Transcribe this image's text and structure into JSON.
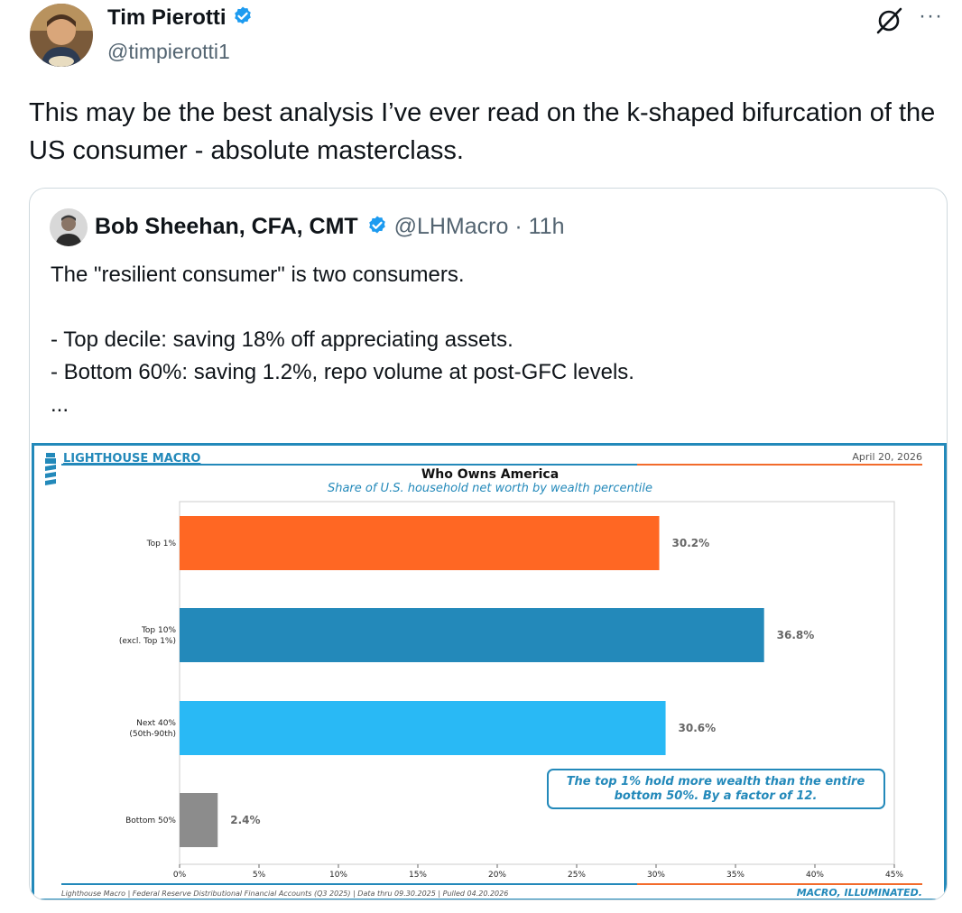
{
  "tweet": {
    "author_name": "Tim Pierotti",
    "author_handle": "@timpierotti1",
    "text": "This may be the best analysis I’ve ever read on the k-shaped bifurcation of the US consumer - absolute masterclass.",
    "more_label": "···",
    "icons": [
      "verified-badge-icon",
      "grok-icon",
      "more-icon"
    ]
  },
  "quote": {
    "author_name": "Bob Sheehan, CFA, CMT",
    "author_handle": "@LHMacro",
    "time": "· 11h",
    "lines": [
      "The \"resilient consumer\" is two consumers.",
      "",
      "- Top decile: saving 18% off appreciating assets.",
      "- Bottom 60%: saving 1.2%, repo volume at post-GFC levels.",
      "..."
    ]
  },
  "chart_card": {
    "brand": "LIGHTHOUSE MACRO",
    "date": "April 20, 2026",
    "footer_source": "Lighthouse Macro | Federal Reserve Distributional Financial Accounts (Q3 2025) | Data thru 09.30.2025 | Pulled 04.20.2026",
    "footer_tagline": "MACRO, ILLUMINATED.",
    "accent_blue": "#2389ba",
    "accent_orange": "#f26b2b"
  },
  "chart_data": {
    "type": "bar",
    "orientation": "horizontal",
    "title": "Who Owns America",
    "subtitle": "Share of U.S. household net worth by wealth percentile",
    "categories": [
      [
        "Top 1%"
      ],
      [
        "Top 10%",
        "(excl. Top 1%)"
      ],
      [
        "Next 40%",
        "(50th-90th)"
      ],
      [
        "Bottom 50%"
      ]
    ],
    "values": [
      30.2,
      36.8,
      30.6,
      2.4
    ],
    "value_labels": [
      "30.2%",
      "36.8%",
      "30.6%",
      "2.4%"
    ],
    "colors": [
      "#ff6723",
      "#2389ba",
      "#29b9f5",
      "#8c8c8c"
    ],
    "xlim": [
      0,
      45
    ],
    "xticks": [
      "0%",
      "5%",
      "10%",
      "15%",
      "20%",
      "25%",
      "30%",
      "35%",
      "40%",
      "45%"
    ],
    "annotation": [
      "The top 1% hold more wealth than the entire",
      "bottom 50%. By a factor of 12."
    ],
    "grid": false
  }
}
